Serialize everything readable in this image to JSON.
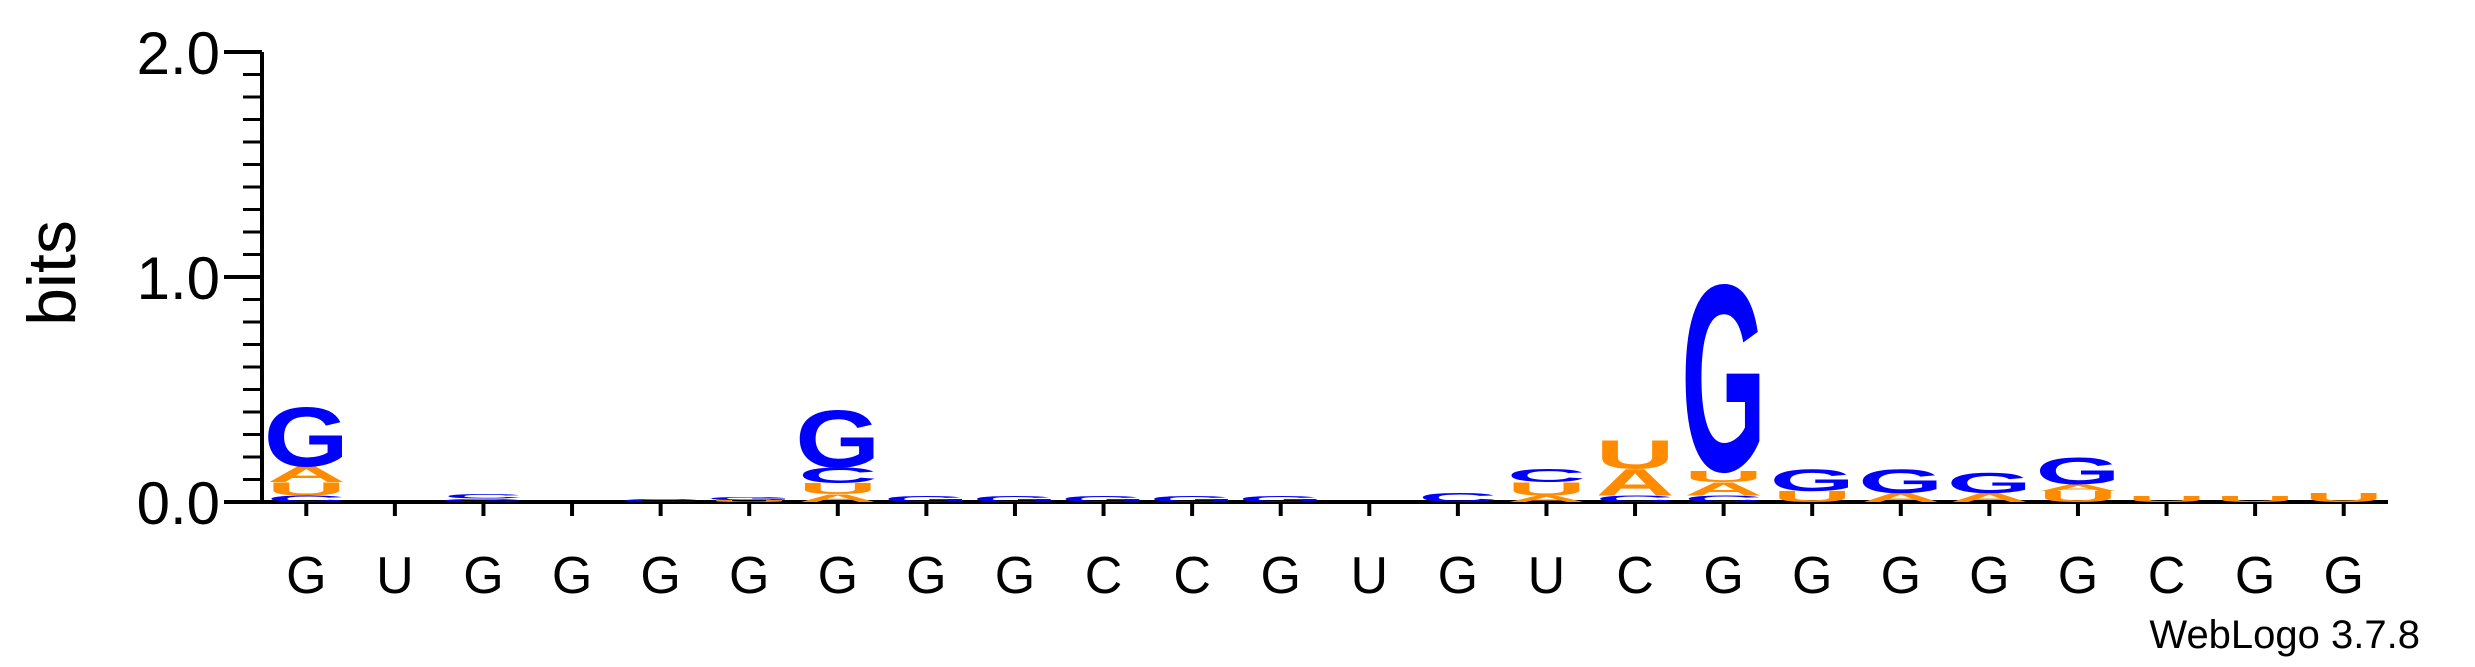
{
  "chart_data": {
    "type": "sequence-logo",
    "ylabel": "bits",
    "ylim": [
      0,
      2
    ],
    "yticks": [
      {
        "label": "0.0",
        "value": 0
      },
      {
        "label": "1.0",
        "value": 1
      },
      {
        "label": "2.0",
        "value": 2
      }
    ],
    "xtick_labels": [
      "G",
      "U",
      "G",
      "G",
      "G",
      "G",
      "G",
      "G",
      "G",
      "C",
      "C",
      "G",
      "U",
      "G",
      "U",
      "C",
      "G",
      "G",
      "G",
      "G",
      "G",
      "C",
      "G",
      "G"
    ],
    "colors": {
      "G": "#0000ff",
      "C": "#0000ff",
      "U": "#ff8c00",
      "A": "#ff8c00"
    },
    "stacks": [
      [
        [
          "C",
          0.03
        ],
        [
          "U",
          0.06
        ],
        [
          "A",
          0.07
        ],
        [
          "G",
          0.27
        ]
      ],
      [],
      [
        [
          "G",
          0.015
        ],
        [
          "C",
          0.02
        ]
      ],
      [],
      [
        [
          "C",
          0.015
        ]
      ],
      [
        [
          "U",
          0.01
        ],
        [
          "G",
          0.015
        ]
      ],
      [
        [
          "A",
          0.035
        ],
        [
          "U",
          0.05
        ],
        [
          "C",
          0.07
        ],
        [
          "G",
          0.26
        ]
      ],
      [
        [
          "G",
          0.025
        ]
      ],
      [
        [
          "G",
          0.025
        ]
      ],
      [
        [
          "G",
          0.025
        ]
      ],
      [
        [
          "G",
          0.025
        ]
      ],
      [
        [
          "G",
          0.025
        ]
      ],
      [],
      [
        [
          "C",
          0.04
        ]
      ],
      [
        [
          "A",
          0.03
        ],
        [
          "U",
          0.06
        ],
        [
          "C",
          0.06
        ]
      ],
      [
        [
          "C",
          0.03
        ],
        [
          "A",
          0.12
        ],
        [
          "U",
          0.13
        ]
      ],
      [
        [
          "C",
          0.03
        ],
        [
          "A",
          0.06
        ],
        [
          "U",
          0.05
        ],
        [
          "G",
          0.85
        ]
      ],
      [
        [
          "U",
          0.05
        ],
        [
          "G",
          0.1
        ]
      ],
      [
        [
          "A",
          0.04
        ],
        [
          "G",
          0.11
        ]
      ],
      [
        [
          "A",
          0.04
        ],
        [
          "G",
          0.09
        ]
      ],
      [
        [
          "U",
          0.05
        ],
        [
          "A",
          0.03
        ],
        [
          "G",
          0.12
        ]
      ],
      [
        [
          "U",
          0.025
        ]
      ],
      [
        [
          "U",
          0.025
        ]
      ],
      [
        [
          "U",
          0.04
        ]
      ]
    ],
    "credit": "WebLogo 3.7.8"
  }
}
